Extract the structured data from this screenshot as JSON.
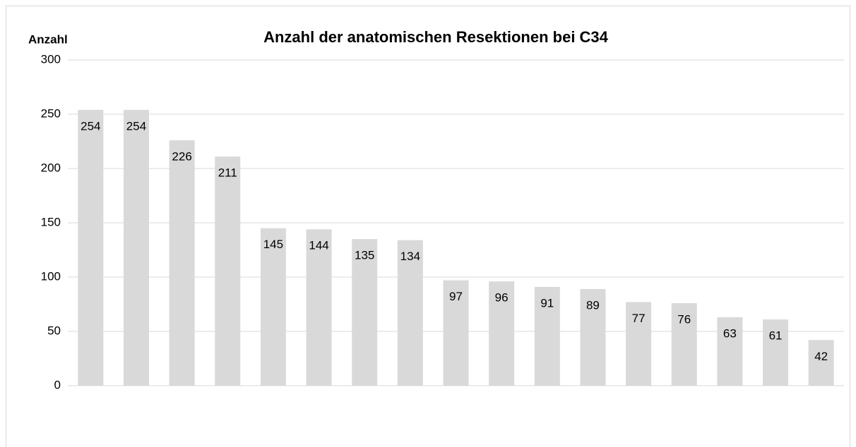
{
  "chart_data": {
    "type": "bar",
    "title": "Anzahl der anatomischen Resektionen bei C34",
    "y_label": "Anzahl",
    "categories": [
      null,
      null,
      null,
      null,
      null,
      null,
      null,
      null,
      null,
      null,
      null,
      null,
      null,
      null,
      null,
      null,
      null
    ],
    "values": [
      254,
      254,
      226,
      211,
      145,
      144,
      135,
      134,
      97,
      96,
      91,
      89,
      77,
      76,
      63,
      61,
      42
    ],
    "color": "#d9d9d9",
    "ylim": [
      0,
      300
    ],
    "yticks": [
      0,
      50,
      100,
      150,
      200,
      250,
      300
    ],
    "grid": true
  }
}
